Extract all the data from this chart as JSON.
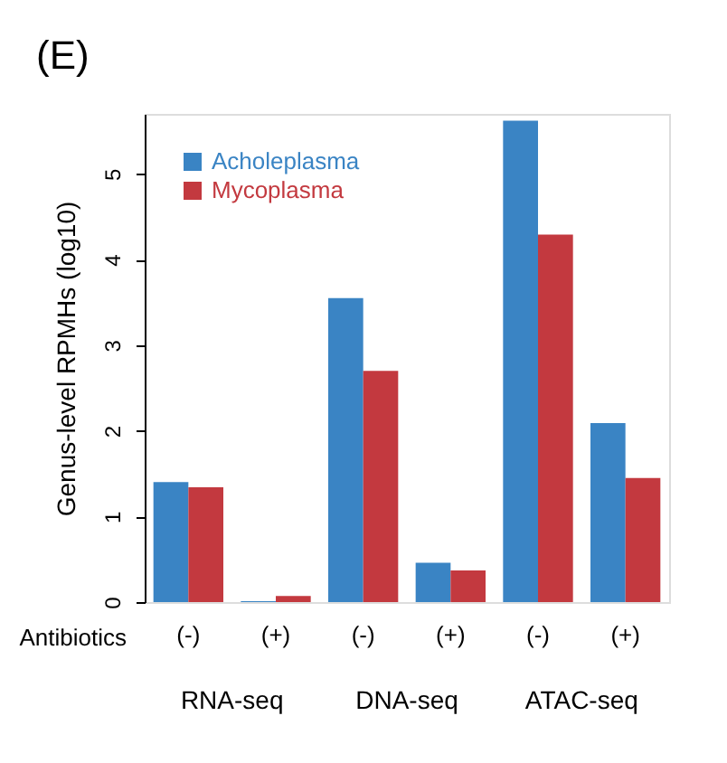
{
  "chart_data": {
    "type": "bar",
    "title": "(E)",
    "ylabel": "Genus-level RPMHs (log10)",
    "categories": [
      "(-)",
      "(+)",
      "(-)",
      "(+)",
      "(-)",
      "(+)"
    ],
    "series": [
      {
        "name": "Acholeplasma",
        "color": "#3a84c4",
        "values": [
          1.4,
          0.01,
          3.55,
          0.46,
          5.62,
          2.09
        ]
      },
      {
        "name": "Mycoplasma",
        "color": "#c3393f",
        "values": [
          1.34,
          0.07,
          2.7,
          0.37,
          4.29,
          1.45
        ]
      }
    ],
    "annotations": [
      "Antibiotics",
      "RNA-seq",
      "DNA-seq",
      "ATAC-seq"
    ],
    "ylim": [
      0,
      5.7
    ],
    "yticks": [
      0,
      1,
      2,
      3,
      4,
      5
    ],
    "grid": false,
    "legend": "top left"
  }
}
